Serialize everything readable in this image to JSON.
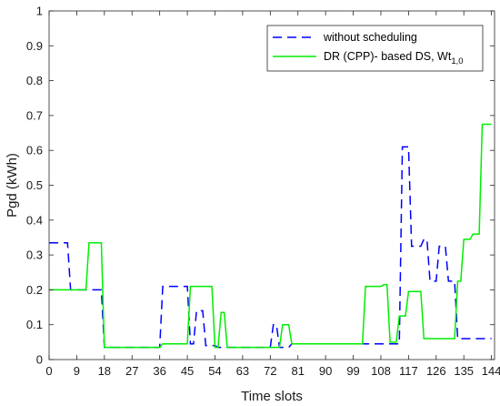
{
  "chart_data": {
    "type": "line",
    "title": "",
    "xlabel": "Time slots",
    "ylabel": "Pgd (kWh)",
    "xlim": [
      0,
      145
    ],
    "ylim": [
      0,
      1
    ],
    "xticks": [
      0,
      9,
      18,
      27,
      36,
      45,
      54,
      63,
      72,
      81,
      90,
      99,
      108,
      117,
      126,
      135,
      144
    ],
    "yticks": [
      0,
      0.1,
      0.2,
      0.3,
      0.4,
      0.5,
      0.6,
      0.7,
      0.8,
      0.9,
      1
    ],
    "grid": false,
    "legend_position": "top-right",
    "series": [
      {
        "name": "without scheduling",
        "style": "dashed",
        "color": "#0000ff",
        "points": [
          [
            0,
            0.335
          ],
          [
            6,
            0.335
          ],
          [
            7,
            0.2
          ],
          [
            17,
            0.2
          ],
          [
            18,
            0.035
          ],
          [
            36,
            0.035
          ],
          [
            37,
            0.21
          ],
          [
            45,
            0.21
          ],
          [
            46,
            0.045
          ],
          [
            47,
            0.045
          ],
          [
            48,
            0.14
          ],
          [
            50,
            0.14
          ],
          [
            51,
            0.04
          ],
          [
            54,
            0.04
          ],
          [
            55,
            0.035
          ],
          [
            72,
            0.035
          ],
          [
            73,
            0.1
          ],
          [
            74,
            0.1
          ],
          [
            75,
            0.035
          ],
          [
            78,
            0.035
          ],
          [
            79,
            0.045
          ],
          [
            114,
            0.045
          ],
          [
            115,
            0.61
          ],
          [
            117,
            0.61
          ],
          [
            118,
            0.325
          ],
          [
            121,
            0.325
          ],
          [
            122,
            0.345
          ],
          [
            123,
            0.345
          ],
          [
            124,
            0.225
          ],
          [
            126,
            0.225
          ],
          [
            127,
            0.325
          ],
          [
            129,
            0.325
          ],
          [
            130,
            0.225
          ],
          [
            132,
            0.225
          ],
          [
            133,
            0.06
          ],
          [
            144,
            0.06
          ]
        ]
      },
      {
        "name": "DR (CPP)- based DS, Wt",
        "name_sub": "1,0",
        "style": "solid",
        "color": "#00ee00",
        "points": [
          [
            0,
            0.2
          ],
          [
            12,
            0.2
          ],
          [
            13,
            0.335
          ],
          [
            17,
            0.335
          ],
          [
            18,
            0.035
          ],
          [
            36,
            0.035
          ],
          [
            37,
            0.045
          ],
          [
            45,
            0.045
          ],
          [
            46,
            0.21
          ],
          [
            53,
            0.21
          ],
          [
            54,
            0.035
          ],
          [
            55,
            0.035
          ],
          [
            56,
            0.135
          ],
          [
            57,
            0.135
          ],
          [
            58,
            0.035
          ],
          [
            75,
            0.035
          ],
          [
            76,
            0.1
          ],
          [
            78,
            0.1
          ],
          [
            79,
            0.045
          ],
          [
            102,
            0.045
          ],
          [
            103,
            0.21
          ],
          [
            108,
            0.21
          ],
          [
            109,
            0.215
          ],
          [
            110,
            0.215
          ],
          [
            111,
            0.05
          ],
          [
            113,
            0.05
          ],
          [
            114,
            0.125
          ],
          [
            116,
            0.125
          ],
          [
            117,
            0.195
          ],
          [
            121,
            0.195
          ],
          [
            122,
            0.06
          ],
          [
            132,
            0.06
          ],
          [
            133,
            0.225
          ],
          [
            134,
            0.225
          ],
          [
            135,
            0.345
          ],
          [
            137,
            0.345
          ],
          [
            138,
            0.36
          ],
          [
            140,
            0.36
          ],
          [
            141,
            0.675
          ],
          [
            144,
            0.675
          ]
        ]
      }
    ]
  }
}
